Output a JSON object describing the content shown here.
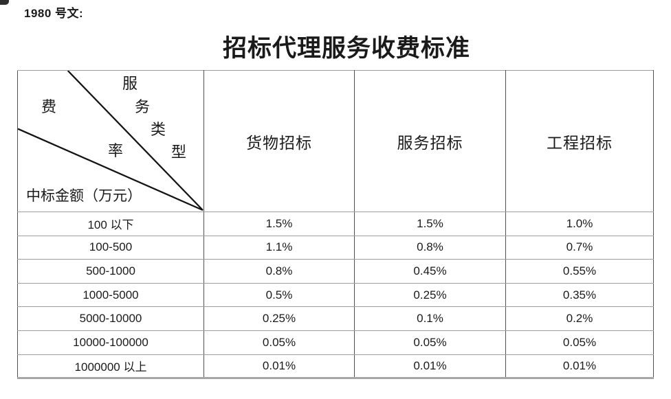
{
  "page": {
    "doc_label": "1980 号文:",
    "title": "招标代理服务收费标准"
  },
  "table": {
    "corner": {
      "rate_chars": [
        "费",
        "率"
      ],
      "type_chars": [
        "服",
        "务",
        "类",
        "型"
      ],
      "amount_label": "中标金额（万元）"
    },
    "columns": [
      "货物招标",
      "服务招标",
      "工程招标"
    ],
    "rows": [
      {
        "range": "100 以下",
        "goods": "1.5%",
        "service": "1.5%",
        "engineering": "1.0%"
      },
      {
        "range": "100-500",
        "goods": "1.1%",
        "service": "0.8%",
        "engineering": "0.7%"
      },
      {
        "range": "500-1000",
        "goods": "0.8%",
        "service": "0.45%",
        "engineering": "0.55%"
      },
      {
        "range": "1000-5000",
        "goods": "0.5%",
        "service": "0.25%",
        "engineering": "0.35%"
      },
      {
        "range": "5000-10000",
        "goods": "0.25%",
        "service": "0.1%",
        "engineering": "0.2%"
      },
      {
        "range": "10000-100000",
        "goods": "0.05%",
        "service": "0.05%",
        "engineering": "0.05%"
      },
      {
        "range": "1000000 以上",
        "goods": "0.01%",
        "service": "0.01%",
        "engineering": "0.01%"
      }
    ]
  },
  "colors": {
    "text": "#1a1a1a",
    "diagonal_line": "#141414",
    "border_vertical": "#4f4f4f",
    "border_horizontal": "#9e9e9e"
  }
}
